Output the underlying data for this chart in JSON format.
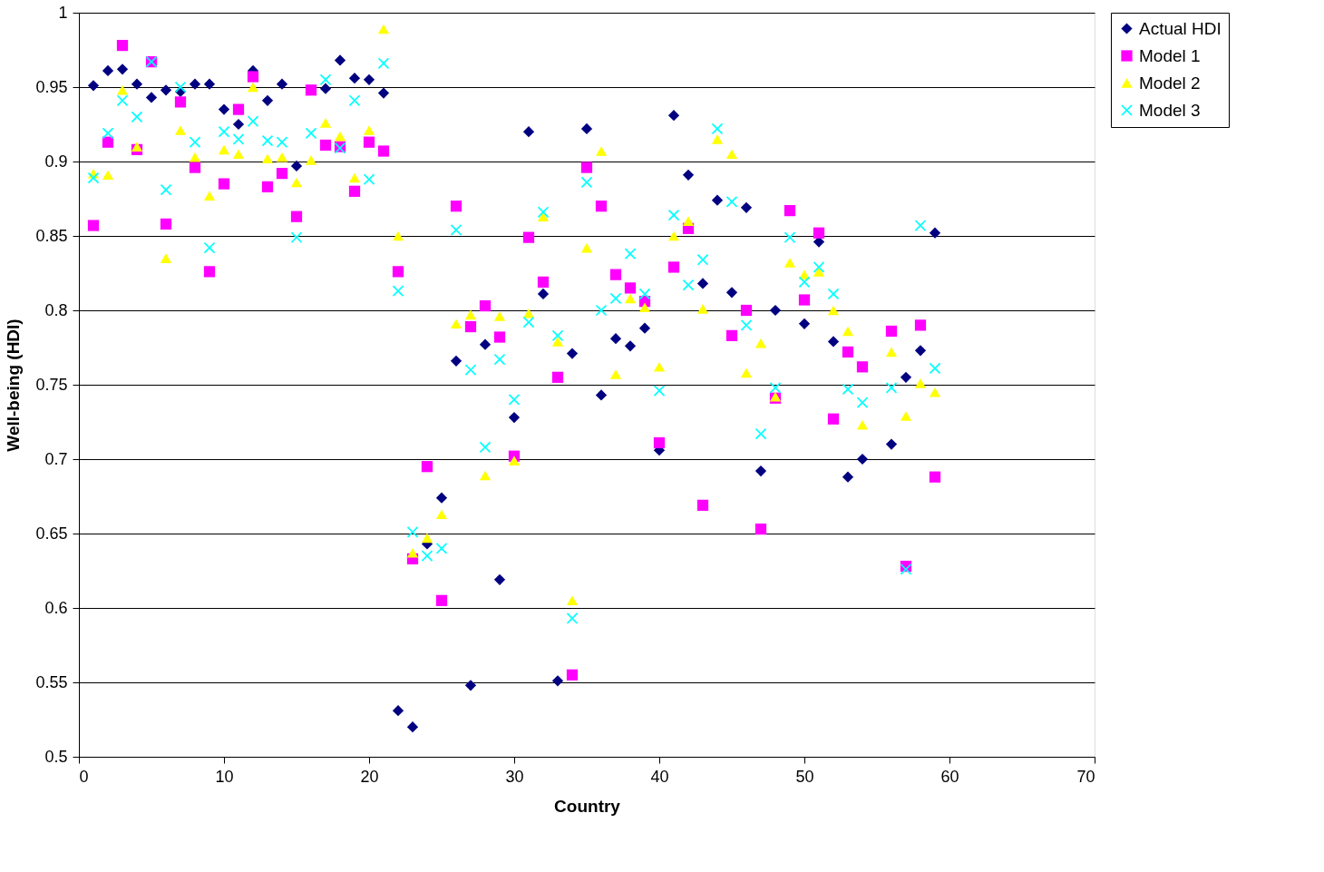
{
  "chart_data": {
    "type": "scatter",
    "xlabel": "Country",
    "ylabel": "Well-being (HDI)",
    "x": [
      1,
      2,
      3,
      4,
      5,
      6,
      7,
      8,
      9,
      10,
      11,
      12,
      13,
      14,
      15,
      16,
      17,
      18,
      19,
      20,
      21,
      22,
      23,
      24,
      25,
      26,
      27,
      28,
      29,
      30,
      31,
      32,
      33,
      34,
      35,
      36,
      37,
      38,
      39,
      40,
      41,
      42,
      43,
      44,
      45,
      46,
      47,
      48,
      49,
      50,
      51,
      52,
      53,
      54,
      55,
      56,
      57,
      58,
      59
    ],
    "xlim": [
      0,
      70
    ],
    "xticks": [
      0,
      10,
      20,
      30,
      40,
      50,
      60,
      70
    ],
    "ylim": [
      0.5,
      1
    ],
    "yticks": [
      0.5,
      0.55,
      0.6,
      0.65,
      0.7,
      0.75,
      0.8,
      0.85,
      0.9,
      0.95,
      1
    ],
    "grid": "y",
    "legend": "right",
    "series": [
      {
        "name": "Actual HDI",
        "color": "#000080",
        "marker": "diamond",
        "values": [
          0.951,
          0.961,
          0.962,
          0.952,
          0.943,
          0.948,
          0.947,
          0.952,
          0.952,
          0.935,
          0.925,
          0.961,
          0.941,
          0.952,
          0.897,
          null,
          0.949,
          0.968,
          0.956,
          0.955,
          0.946,
          0.531,
          0.52,
          0.643,
          0.674,
          0.766,
          0.548,
          0.777,
          0.619,
          0.728,
          0.92,
          0.811,
          0.551,
          0.771,
          0.922,
          0.743,
          0.781,
          0.776,
          0.788,
          0.706,
          0.931,
          0.891,
          0.818,
          0.874,
          0.812,
          0.869,
          0.692,
          0.8,
          null,
          0.791,
          0.846,
          0.779,
          0.688,
          0.7,
          null,
          0.71,
          0.755,
          0.773,
          0.852
        ]
      },
      {
        "name": "Model 1",
        "color": "#ff00ff",
        "marker": "square",
        "values": [
          0.857,
          0.913,
          0.978,
          0.908,
          0.967,
          0.858,
          0.94,
          0.896,
          0.826,
          0.885,
          0.935,
          0.957,
          0.883,
          0.892,
          0.863,
          0.948,
          0.911,
          0.91,
          0.88,
          0.913,
          0.907,
          0.826,
          0.633,
          0.695,
          0.605,
          0.87,
          0.789,
          0.803,
          0.782,
          0.702,
          0.849,
          0.819,
          0.755,
          0.555,
          0.896,
          0.87,
          0.824,
          0.815,
          0.806,
          0.711,
          0.829,
          0.855,
          0.669,
          null,
          0.783,
          0.8,
          0.653,
          0.741,
          0.867,
          0.807,
          0.852,
          0.727,
          0.772,
          0.762,
          null,
          0.786,
          0.628,
          0.79,
          0.688
        ]
      },
      {
        "name": "Model 2",
        "color": "#ffff00",
        "marker": "triangle",
        "values": [
          0.892,
          0.891,
          0.948,
          0.91,
          null,
          0.835,
          0.921,
          0.903,
          0.877,
          0.908,
          0.905,
          0.95,
          0.902,
          0.903,
          0.886,
          0.901,
          0.926,
          0.917,
          0.889,
          0.921,
          0.989,
          0.85,
          0.637,
          0.647,
          0.663,
          0.791,
          0.797,
          0.689,
          0.796,
          0.699,
          0.798,
          0.863,
          0.779,
          0.605,
          0.842,
          0.907,
          0.757,
          0.808,
          0.802,
          0.762,
          0.85,
          0.86,
          0.801,
          0.915,
          0.905,
          0.758,
          0.778,
          0.742,
          0.832,
          0.824,
          0.826,
          0.8,
          0.786,
          0.723,
          null,
          0.772,
          0.729,
          0.751,
          0.745
        ]
      },
      {
        "name": "Model 3",
        "color": "#00ffff",
        "marker": "cross",
        "values": [
          0.889,
          0.919,
          0.941,
          0.93,
          0.967,
          0.881,
          0.95,
          0.913,
          0.842,
          0.92,
          0.915,
          0.927,
          0.914,
          0.913,
          0.849,
          0.919,
          0.955,
          0.909,
          0.941,
          0.888,
          0.966,
          0.813,
          0.651,
          0.635,
          0.64,
          0.854,
          0.76,
          0.708,
          0.767,
          0.74,
          0.792,
          0.866,
          0.783,
          0.593,
          0.886,
          0.8,
          0.808,
          0.838,
          0.811,
          0.746,
          0.864,
          0.817,
          0.834,
          0.922,
          0.873,
          0.79,
          0.717,
          0.748,
          0.849,
          0.819,
          0.829,
          0.811,
          0.747,
          0.738,
          null,
          0.748,
          0.626,
          0.857,
          0.761
        ]
      }
    ]
  }
}
